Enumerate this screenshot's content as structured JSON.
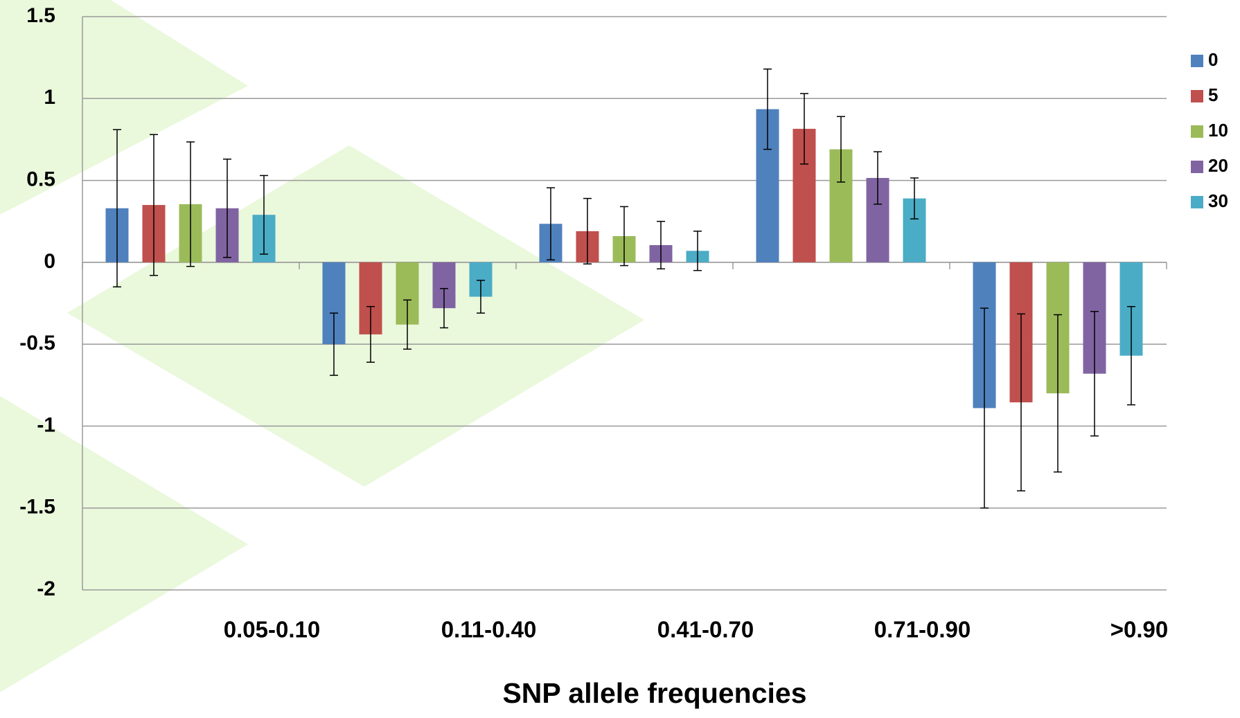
{
  "chart_data": {
    "type": "bar",
    "x_label": "SNP allele frequencies",
    "categories": [
      "0.05-0.10",
      "0.11-0.40",
      "0.41-0.70",
      "0.71-0.90",
      ">0.90"
    ],
    "series": [
      {
        "name": "0",
        "color": "#4f81bd",
        "values": [
          0.33,
          -0.5,
          0.235,
          0.935,
          -0.89
        ],
        "errors": [
          0.48,
          0.19,
          0.22,
          0.245,
          0.61
        ]
      },
      {
        "name": "5",
        "color": "#c0504d",
        "values": [
          0.35,
          -0.44,
          0.19,
          0.815,
          -0.855
        ],
        "errors": [
          0.43,
          0.17,
          0.2,
          0.215,
          0.54
        ]
      },
      {
        "name": "10",
        "color": "#9bbb59",
        "values": [
          0.355,
          -0.38,
          0.16,
          0.69,
          -0.8
        ],
        "errors": [
          0.38,
          0.15,
          0.18,
          0.2,
          0.48
        ]
      },
      {
        "name": "20",
        "color": "#8064a2",
        "values": [
          0.33,
          -0.28,
          0.105,
          0.515,
          -0.68
        ],
        "errors": [
          0.3,
          0.12,
          0.145,
          0.16,
          0.38
        ]
      },
      {
        "name": "30",
        "color": "#4bacc6",
        "values": [
          0.29,
          -0.21,
          0.07,
          0.39,
          -0.57
        ],
        "errors": [
          0.24,
          0.1,
          0.12,
          0.125,
          0.3
        ]
      }
    ],
    "ylim": [
      -2,
      1.5
    ],
    "yticks": [
      -2,
      -1.5,
      -1,
      -0.5,
      0,
      0.5,
      1,
      1.5
    ],
    "grid": true,
    "legend": "right"
  }
}
